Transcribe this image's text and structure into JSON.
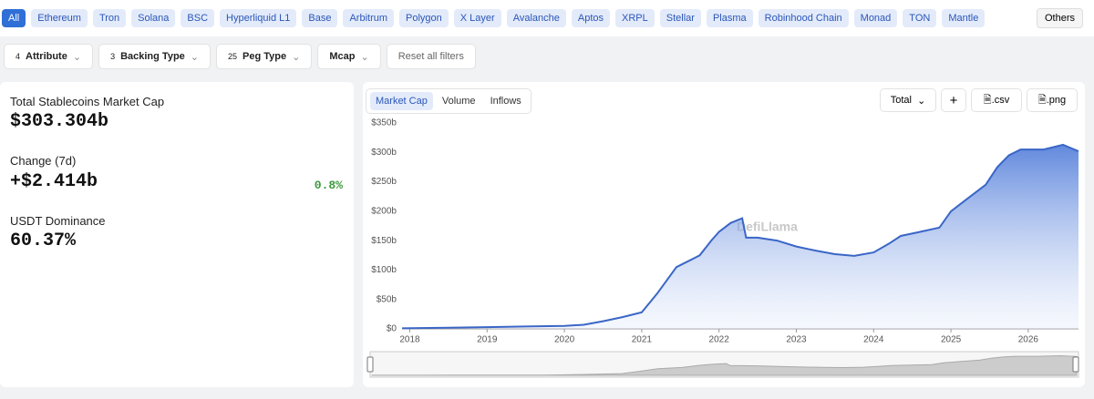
{
  "chain_tabs": [
    "All",
    "Ethereum",
    "Tron",
    "Solana",
    "BSC",
    "Hyperliquid L1",
    "Base",
    "Arbitrum",
    "Polygon",
    "X Layer",
    "Avalanche",
    "Aptos",
    "XRPL",
    "Stellar",
    "Plasma",
    "Robinhood Chain",
    "Monad",
    "TON",
    "Mantle"
  ],
  "others": "Others",
  "filters": [
    {
      "count": 4,
      "label": "Attribute"
    },
    {
      "count": 3,
      "label": "Backing Type"
    },
    {
      "count": 25,
      "label": "Peg Type"
    },
    {
      "label": "Mcap"
    }
  ],
  "reset": "Reset all filters",
  "stats": {
    "total_label": "Total Stablecoins Market Cap",
    "total_value": "$303.304b",
    "change_label": "Change (7d)",
    "change_value": "+$2.414b",
    "change_pct": "0.8%",
    "dominance_label": "USDT Dominance",
    "dominance_value": "60.37%"
  },
  "chart_tabs": [
    "Market Cap",
    "Volume",
    "Inflows"
  ],
  "chart_buttons": {
    "mode": "Total",
    "add": "+",
    "csv": ".csv",
    "png": ".png"
  },
  "chart_data": {
    "type": "area",
    "watermark": "DefiLlama",
    "color": "#3a66c6",
    "x": [
      2017.9,
      2018.5,
      2019.0,
      2019.5,
      2020.0,
      2020.25,
      2020.5,
      2020.75,
      2021.0,
      2021.2,
      2021.45,
      2021.75,
      2021.9,
      2022.0,
      2022.15,
      2022.3,
      2022.35,
      2022.5,
      2022.75,
      2023.0,
      2023.25,
      2023.5,
      2023.75,
      2024.0,
      2024.2,
      2024.35,
      2024.6,
      2024.85,
      2025.0,
      2025.2,
      2025.45,
      2025.6,
      2025.75,
      2025.9,
      2026.2,
      2026.45,
      2026.65
    ],
    "values": [
      1,
      2,
      3,
      4,
      5,
      7,
      13,
      20,
      28,
      60,
      105,
      125,
      150,
      165,
      180,
      188,
      155,
      155,
      150,
      140,
      133,
      127,
      124,
      130,
      145,
      158,
      165,
      172,
      200,
      220,
      245,
      275,
      295,
      305,
      305,
      313,
      302
    ],
    "xlim": [
      2017.9,
      2026.65
    ],
    "xticks": [
      2018,
      2019,
      2020,
      2021,
      2022,
      2023,
      2024,
      2025,
      2026
    ],
    "ylim": [
      0,
      350
    ],
    "yticks": [
      {
        "value": 0,
        "label": "$0"
      },
      {
        "value": 50,
        "label": "$50b"
      },
      {
        "value": 100,
        "label": "$100b"
      },
      {
        "value": 150,
        "label": "$150b"
      },
      {
        "value": 200,
        "label": "$200b"
      },
      {
        "value": 250,
        "label": "$250b"
      },
      {
        "value": 300,
        "label": "$300b"
      },
      {
        "value": 350,
        "label": "$350b"
      }
    ],
    "grid": false
  }
}
